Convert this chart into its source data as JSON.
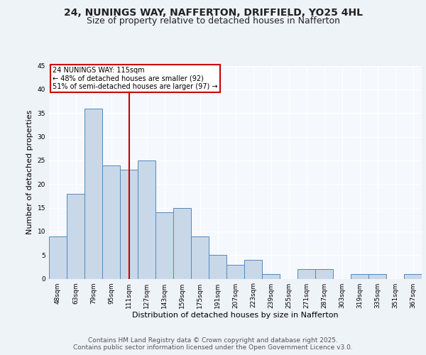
{
  "title1": "24, NUNINGS WAY, NAFFERTON, DRIFFIELD, YO25 4HL",
  "title2": "Size of property relative to detached houses in Nafferton",
  "xlabel": "Distribution of detached houses by size in Nafferton",
  "ylabel": "Number of detached properties",
  "bin_labels": [
    "48sqm",
    "63sqm",
    "79sqm",
    "95sqm",
    "111sqm",
    "127sqm",
    "143sqm",
    "159sqm",
    "175sqm",
    "191sqm",
    "207sqm",
    "223sqm",
    "239sqm",
    "255sqm",
    "271sqm",
    "287sqm",
    "303sqm",
    "319sqm",
    "335sqm",
    "351sqm",
    "367sqm"
  ],
  "values": [
    9,
    18,
    36,
    24,
    23,
    25,
    14,
    15,
    9,
    5,
    3,
    4,
    1,
    0,
    2,
    2,
    0,
    1,
    1,
    0,
    1
  ],
  "bar_color": "#c8d8e8",
  "bar_edge_color": "#5588bb",
  "vline_x_index": 4,
  "vline_color": "#cc0000",
  "annotation_text": "24 NUNINGS WAY: 115sqm\n← 48% of detached houses are smaller (92)\n51% of semi-detached houses are larger (97) →",
  "annotation_box_color": "#ffffff",
  "annotation_box_edge": "#cc0000",
  "ylim": [
    0,
    45
  ],
  "yticks": [
    0,
    5,
    10,
    15,
    20,
    25,
    30,
    35,
    40,
    45
  ],
  "footer": "Contains HM Land Registry data © Crown copyright and database right 2025.\nContains public sector information licensed under the Open Government Licence v3.0.",
  "bg_color": "#eef3f8",
  "plot_bg_color": "#f5f8fc",
  "grid_color": "#ffffff",
  "title_fontsize": 10,
  "subtitle_fontsize": 9,
  "axis_label_fontsize": 8,
  "tick_fontsize": 6.5,
  "footer_fontsize": 6.5,
  "annotation_fontsize": 7
}
